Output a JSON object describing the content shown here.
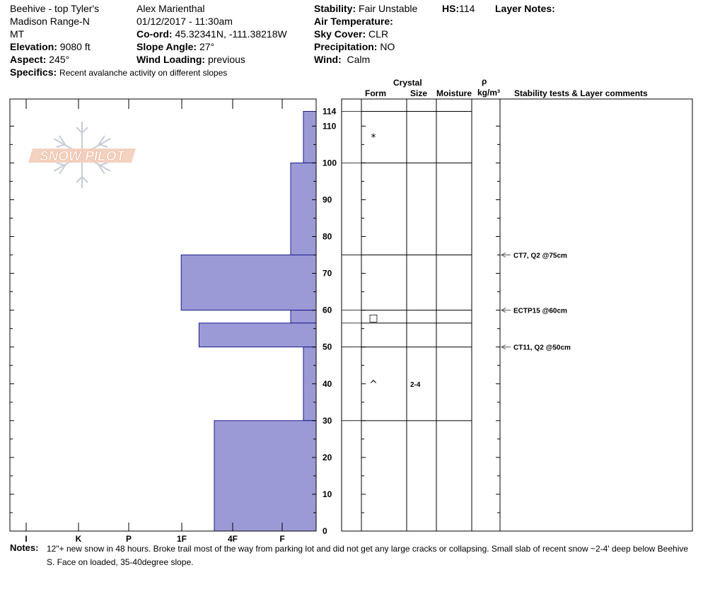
{
  "header": {
    "location": "Beehive - top Tyler's",
    "range": "Madison Range-N",
    "state": "MT",
    "elevation_label": "Elevation:",
    "elevation": "9080 ft",
    "aspect_label": "Aspect:",
    "aspect": "245°",
    "specifics_label": "Specifics:",
    "specifics": "Recent avalanche activity on different slopes",
    "observer": "Alex Marienthal",
    "datetime": "01/12/2017 - 11:30am",
    "coord_label": "Co-ord:",
    "coord": "45.32341N, -111.38218W",
    "slope_label": "Slope Angle:",
    "slope": "27°",
    "wind_loading_label": "Wind Loading:",
    "wind_loading": "previous",
    "stability_label": "Stability:",
    "stability": "Fair Unstable",
    "hs_label": "HS:",
    "hs": "114",
    "layer_notes_label": "Layer Notes:",
    "air_temp_label": "Air Temperature:",
    "sky_label": "Sky Cover:",
    "sky": "CLR",
    "precip_label": "Precipitation:",
    "precip": "NO",
    "wind_label": "Wind:",
    "wind": "Calm"
  },
  "logo_text": "SNOW PILOT",
  "columns": {
    "crystal": "Crystal",
    "form": "Form",
    "size": "Size",
    "moisture": "Moisture",
    "rho": "ρ",
    "density_unit": "kg/m³",
    "stability": "Stability tests & Layer comments"
  },
  "notes_label": "Notes:",
  "notes_line1": "12\"+ new snow in 48 hours. Broke trail most of the way from parking lot and did not get any large cracks or collapsing. Small slab of recent snow ~2-4' deep below Beehive",
  "notes_line2": "S. Face on loaded, 35-40degree slope.",
  "colors": {
    "bar_fill": "#9c9ad6",
    "bar_stroke": "#1a1a8c"
  },
  "chart_data": {
    "type": "bar",
    "hardness_scale": [
      "I",
      "K",
      "P",
      "1F",
      "4F",
      "F"
    ],
    "depth_ticks": [
      0,
      10,
      20,
      30,
      40,
      50,
      60,
      70,
      80,
      90,
      100,
      110,
      114
    ],
    "ylim": [
      0,
      114
    ],
    "layers": [
      {
        "top": 114,
        "bottom": 100,
        "hardness": 0.25
      },
      {
        "top": 100,
        "bottom": 75,
        "hardness": 0.5
      },
      {
        "top": 75,
        "bottom": 60,
        "hardness": 2.65
      },
      {
        "top": 60,
        "bottom": 56.5,
        "hardness": 0.5
      },
      {
        "top": 56.5,
        "bottom": 50,
        "hardness": 2.3
      },
      {
        "top": 50,
        "bottom": 30,
        "hardness": 0.25
      },
      {
        "top": 30,
        "bottom": 0,
        "hardness": 2.0
      }
    ],
    "layer_boundaries": [
      114,
      100,
      75,
      60,
      56.5,
      50,
      30
    ],
    "crystals": [
      {
        "depth": 107,
        "form": "*",
        "size": ""
      },
      {
        "depth": 58,
        "form": "□",
        "size": ""
      },
      {
        "depth": 40,
        "form": "^",
        "size": "2-4"
      }
    ],
    "tests": [
      {
        "depth": 75,
        "text": "CT7, Q2 @75cm"
      },
      {
        "depth": 60,
        "text": "ECTP15 @60cm"
      },
      {
        "depth": 50,
        "text": "CT11, Q2 @50cm"
      }
    ]
  }
}
